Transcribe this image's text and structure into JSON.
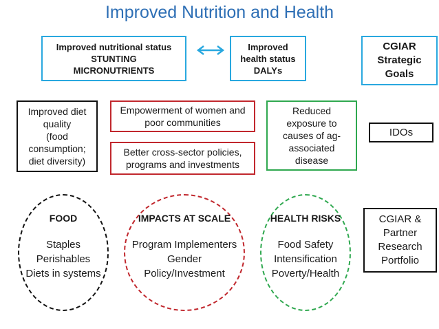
{
  "title": "Improved Nutrition and Health",
  "top": {
    "nutritional": "Improved nutritional status\nSTUNTING\nMICRONUTRIENTS",
    "health": "Improved\nhealth status\nDALYs",
    "cgiar_goals": "CGIAR\nStrategic\nGoals"
  },
  "middle": {
    "diet": "Improved diet\nquality\n(food\nconsumption;\ndiet diversity)",
    "empowerment": "Empowerment of women and\npoor communities",
    "policies": "Better cross-sector policies,\nprograms and investments",
    "disease": "Reduced\nexposure to\ncauses of ag-\nassociated\ndisease",
    "idos": "IDOs"
  },
  "circles": {
    "food": {
      "title": "FOOD",
      "items": "Staples\nPerishables\nDiets in systems"
    },
    "impacts": {
      "title": "IMPACTS AT SCALE",
      "items": "Program Implementers\nGender\nPolicy/Investment"
    },
    "health_risks": {
      "title": "HEALTH RISKS",
      "items": "Food Safety\nIntensification\nPoverty/Health"
    }
  },
  "portfolio": "CGIAR &\nPartner\nResearch\nPortfolio",
  "colors": {
    "title": "#2e6fb5",
    "blue_border": "#29a8df",
    "red_border": "#c1272d",
    "green_border": "#2fa84f",
    "arrow": "#29a8df"
  }
}
